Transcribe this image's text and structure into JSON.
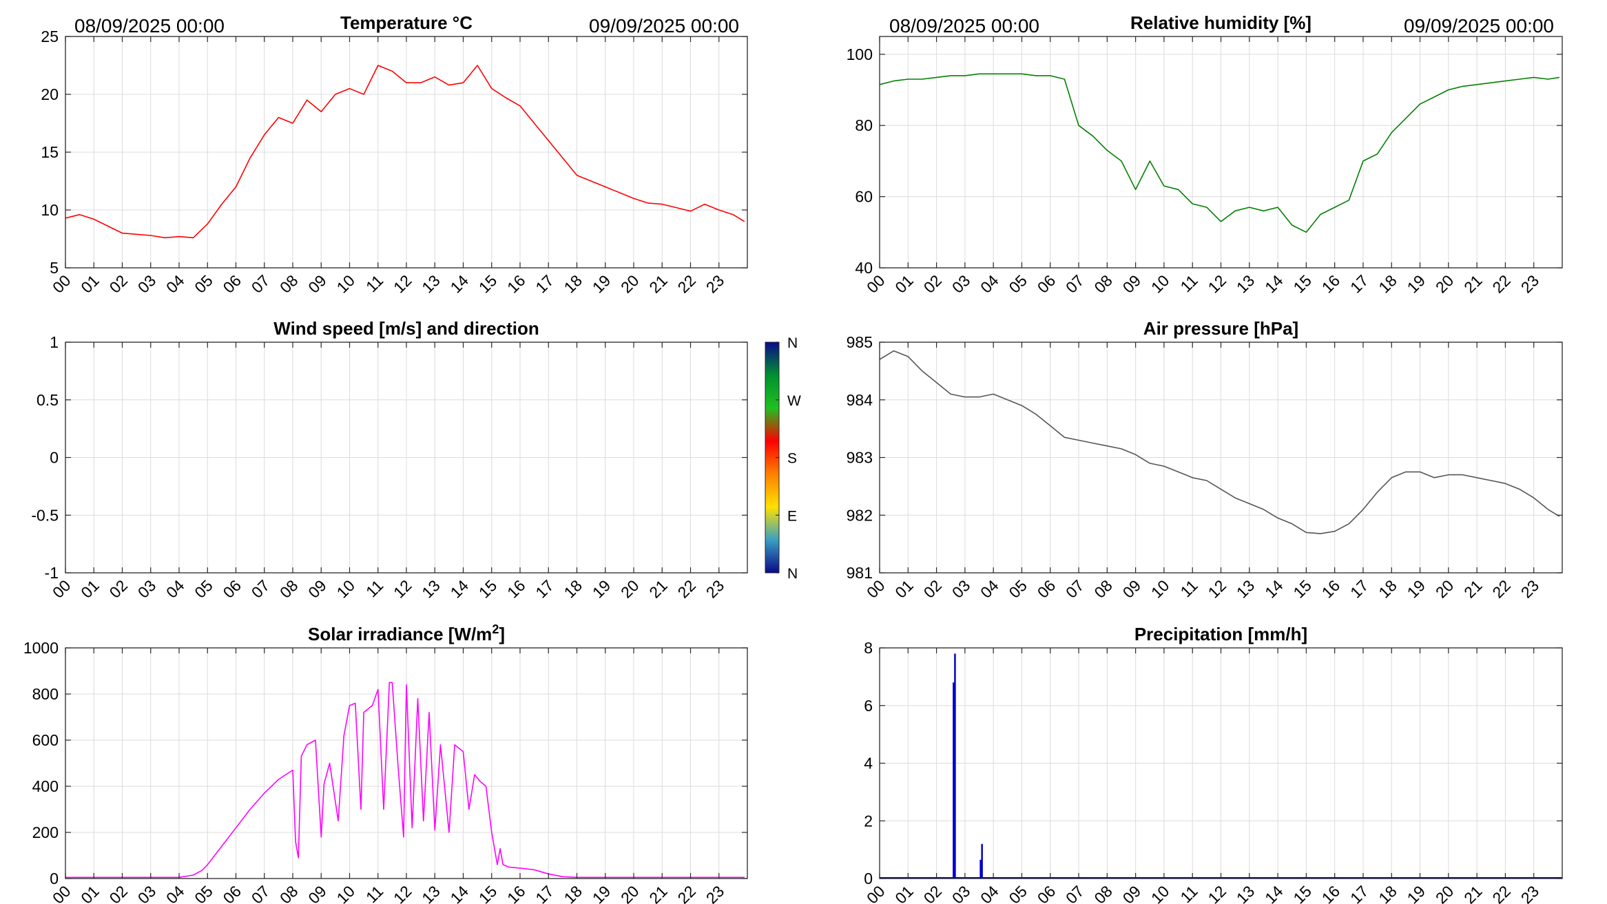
{
  "figure": {
    "start_label": "08/09/2025 00:00",
    "end_label": "09/09/2025 00:00",
    "hour_ticks": [
      "00",
      "01",
      "02",
      "03",
      "04",
      "05",
      "06",
      "07",
      "08",
      "09",
      "10",
      "11",
      "12",
      "13",
      "14",
      "15",
      "16",
      "17",
      "18",
      "19",
      "20",
      "21",
      "22",
      "23"
    ]
  },
  "chart_data": [
    {
      "id": "temperature",
      "type": "line",
      "title": "Temperature °C",
      "color": "#ff0000",
      "xlim": [
        0,
        24
      ],
      "ylim": [
        5,
        25
      ],
      "yticks": [
        5,
        10,
        15,
        20,
        25
      ],
      "x": [
        0,
        0.5,
        1,
        1.5,
        2,
        2.5,
        3,
        3.5,
        4,
        4.5,
        5,
        5.5,
        6,
        6.5,
        7,
        7.5,
        8,
        8.5,
        9,
        9.5,
        10,
        10.5,
        11,
        11.5,
        12,
        12.5,
        13,
        13.5,
        14,
        14.5,
        15,
        15.5,
        16,
        16.5,
        17,
        17.5,
        18,
        18.5,
        19,
        19.5,
        20,
        20.5,
        21,
        21.5,
        22,
        22.5,
        23,
        23.5,
        23.9
      ],
      "y": [
        9.3,
        9.6,
        9.2,
        8.6,
        8.0,
        7.9,
        7.8,
        7.6,
        7.7,
        7.6,
        8.8,
        10.5,
        12.0,
        14.5,
        16.5,
        18.0,
        17.5,
        19.5,
        18.5,
        20.0,
        20.5,
        20.0,
        22.5,
        22.0,
        21.0,
        21.0,
        21.5,
        20.8,
        21.0,
        22.5,
        20.5,
        19.7,
        19.0,
        17.5,
        16.0,
        14.5,
        13.0,
        12.5,
        12.0,
        11.5,
        11.0,
        10.6,
        10.5,
        10.2,
        9.9,
        10.5,
        10.0,
        9.6,
        9.0
      ]
    },
    {
      "id": "humidity",
      "type": "line",
      "title": "Relative humidity [%]",
      "color": "#008000",
      "xlim": [
        0,
        24
      ],
      "ylim": [
        40,
        105
      ],
      "yticks": [
        40,
        60,
        80,
        100
      ],
      "x": [
        0,
        0.5,
        1,
        1.5,
        2,
        2.5,
        3,
        3.5,
        4,
        4.5,
        5,
        5.5,
        6,
        6.5,
        7,
        7.5,
        8,
        8.5,
        9,
        9.5,
        10,
        10.5,
        11,
        11.5,
        12,
        12.5,
        13,
        13.5,
        14,
        14.5,
        15,
        15.5,
        16,
        16.5,
        17,
        17.5,
        18,
        18.5,
        19,
        19.5,
        20,
        20.5,
        21,
        21.5,
        22,
        22.5,
        23,
        23.5,
        23.9
      ],
      "y": [
        91.5,
        92.5,
        93,
        93,
        93.5,
        94,
        94,
        94.5,
        94.5,
        94.5,
        94.5,
        94,
        94,
        93,
        80,
        77,
        73,
        70,
        62,
        70,
        63,
        62,
        58,
        57,
        53,
        56,
        57,
        56,
        57,
        52,
        50,
        55,
        57,
        59,
        70,
        72,
        78,
        82,
        86,
        88,
        90,
        91,
        91.5,
        92,
        92.5,
        93,
        93.5,
        93,
        93.5
      ]
    },
    {
      "id": "wind",
      "type": "line",
      "title": "Wind speed [m/s] and direction",
      "xlim": [
        0,
        24
      ],
      "ylim": [
        -1,
        1
      ],
      "yticks": [
        -1,
        -0.5,
        0,
        0.5,
        1
      ],
      "x": [],
      "y": [],
      "colorbar": {
        "labels": [
          "N",
          "E",
          "S",
          "W",
          "N"
        ],
        "colors": [
          "#0a0a8a",
          "#3aa0c0",
          "#ffe000",
          "#ff8000",
          "#ff0000",
          "#20c020",
          "#009030",
          "#0a0a8a"
        ]
      }
    },
    {
      "id": "pressure",
      "type": "line",
      "title": "Air pressure [hPa]",
      "color": "#555555",
      "xlim": [
        0,
        24
      ],
      "ylim": [
        981,
        985
      ],
      "yticks": [
        981,
        982,
        983,
        984,
        985
      ],
      "x": [
        0,
        0.5,
        1,
        1.5,
        2,
        2.5,
        3,
        3.5,
        4,
        4.5,
        5,
        5.5,
        6,
        6.5,
        7,
        7.5,
        8,
        8.5,
        9,
        9.5,
        10,
        10.5,
        11,
        11.5,
        12,
        12.5,
        13,
        13.5,
        14,
        14.5,
        15,
        15.5,
        16,
        16.5,
        17,
        17.5,
        18,
        18.5,
        19,
        19.5,
        20,
        20.5,
        21,
        21.5,
        22,
        22.5,
        23,
        23.5,
        23.9
      ],
      "y": [
        984.7,
        984.85,
        984.75,
        984.5,
        984.3,
        984.1,
        984.05,
        984.05,
        984.1,
        984.0,
        983.9,
        983.75,
        983.55,
        983.35,
        983.3,
        983.25,
        983.2,
        983.15,
        983.05,
        982.9,
        982.85,
        982.75,
        982.65,
        982.6,
        982.45,
        982.3,
        982.2,
        982.1,
        981.95,
        981.85,
        981.7,
        981.68,
        981.72,
        981.85,
        982.1,
        982.4,
        982.65,
        982.75,
        982.75,
        982.65,
        982.7,
        982.7,
        982.65,
        982.6,
        982.55,
        982.45,
        982.3,
        982.1,
        981.98
      ]
    },
    {
      "id": "solar",
      "type": "line",
      "title": "Solar irradiance [W/m2]",
      "title_main": "Solar irradiance [W/m",
      "title_sup": "2",
      "title_end": "]",
      "color": "#ff00ff",
      "xlim": [
        0,
        24
      ],
      "ylim": [
        0,
        1000
      ],
      "yticks": [
        0,
        200,
        400,
        600,
        800,
        1000
      ],
      "x": [
        0,
        4,
        4.5,
        4.8,
        5,
        5.5,
        6,
        6.5,
        7,
        7.5,
        8,
        8.1,
        8.2,
        8.3,
        8.5,
        8.8,
        9,
        9.1,
        9.3,
        9.6,
        9.8,
        10,
        10.2,
        10.4,
        10.5,
        10.8,
        11,
        11.2,
        11.4,
        11.5,
        11.7,
        11.9,
        12,
        12.2,
        12.4,
        12.6,
        12.8,
        13,
        13.2,
        13.5,
        13.7,
        14,
        14.2,
        14.4,
        14.6,
        14.8,
        15,
        15.2,
        15.3,
        15.4,
        15.6,
        16,
        16.5,
        17,
        17.5,
        18,
        20,
        23.9
      ],
      "y": [
        5,
        5,
        15,
        35,
        60,
        140,
        220,
        300,
        370,
        430,
        470,
        160,
        90,
        530,
        580,
        600,
        180,
        410,
        500,
        250,
        620,
        750,
        760,
        300,
        720,
        750,
        820,
        300,
        850,
        850,
        500,
        180,
        840,
        220,
        780,
        250,
        720,
        210,
        580,
        200,
        580,
        550,
        300,
        450,
        420,
        400,
        200,
        60,
        130,
        60,
        50,
        45,
        38,
        20,
        8,
        5,
        5,
        5
      ]
    },
    {
      "id": "precip",
      "type": "bar",
      "title": "Precipitation [mm/h]",
      "color": "#0000cc",
      "xlim": [
        0,
        24
      ],
      "ylim": [
        0,
        8
      ],
      "yticks": [
        0,
        2,
        4,
        6,
        8
      ],
      "x": [
        2.6,
        2.65,
        3.55,
        3.6
      ],
      "values": [
        6.8,
        7.8,
        0.65,
        1.2
      ]
    }
  ]
}
